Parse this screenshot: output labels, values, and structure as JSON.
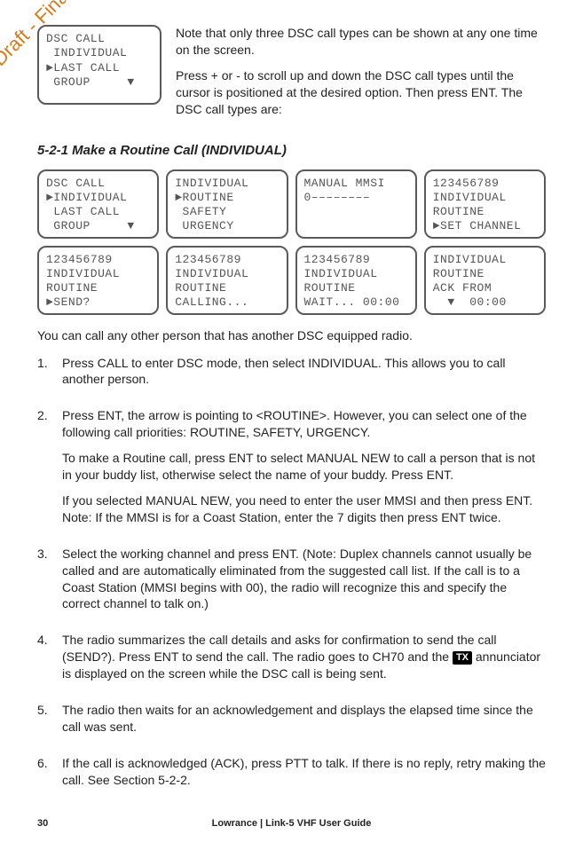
{
  "watermark": "Draft - Final Approval",
  "top_lcd": "DSC CALL\n INDIVIDUAL\n►LAST CALL\n GROUP     ▼",
  "intro1": " Note that only three DSC call types can be shown at any one time on the screen.",
  "intro2": "Press + or - to scroll up and down the DSC call types until the cursor is positioned at the desired option. Then press ENT. The DSC call types are:",
  "section_heading": "5-2-1 Make a Routine Call (INDIVIDUAL)",
  "lcd_grid": [
    "DSC CALL\n►INDIVIDUAL\n LAST CALL\n GROUP     ▼",
    "INDIVIDUAL\n►ROUTINE\n SAFETY\n URGENCY",
    "MANUAL MMSI\n0––––––––",
    "123456789\nINDIVIDUAL\nROUTINE\n►SET CHANNEL",
    "123456789\nINDIVIDUAL\nROUTINE\n►SEND?",
    "123456789\nINDIVIDUAL\nROUTINE\nCALLING...",
    "123456789\nINDIVIDUAL\nROUTINE\nWAIT... 00:00",
    "INDIVIDUAL\nROUTINE\nACK FROM\n  ▼  00:00"
  ],
  "body_intro": "You can call any other person that has another DSC equipped radio.",
  "steps": [
    {
      "num": "1.",
      "paras": [
        "Press CALL to enter DSC mode, then select INDIVIDUAL. This allows you to call another person."
      ]
    },
    {
      "num": "2.",
      "paras": [
        "Press ENT, the arrow is pointing to <ROUTINE>. However, you can select one of the following call priorities: ROUTINE, SAFETY, URGENCY.",
        "To make a Routine call, press ENT to select MANUAL NEW to call a person that is not in your buddy list, otherwise select the name of your buddy. Press ENT.",
        "If you selected MANUAL NEW, you need to enter the user MMSI and then press ENT. Note: If the MMSI is for a Coast Station, enter the 7 digits then press ENT twice."
      ]
    },
    {
      "num": "3.",
      "paras": [
        "Select the working channel and press ENT. (Note: Duplex channels cannot usually be called and are automatically eliminated from the suggested call list. If the call is to a Coast Station (MMSI begins with 00), the radio will recognize this and specify the correct channel to talk on.)"
      ]
    },
    {
      "num": "4.",
      "pre": "The radio summarizes the call details and asks for confirmation to send the call (SEND?). Press ENT to send the call. The radio goes to CH70 and the ",
      "badge": "TX",
      "post": " annunciator is displayed on the screen while the DSC call is being sent."
    },
    {
      "num": "5.",
      "paras": [
        "The radio then waits for an acknowledgement and displays the elapsed time since the call was sent."
      ]
    },
    {
      "num": "6.",
      "paras": [
        "If the call is acknowledged (ACK), press PTT to talk. If there is no reply, retry making the call. See Section 5-2-2."
      ]
    }
  ],
  "footer_page": "30",
  "footer_center": "Lowrance | Link-5 VHF User Guide"
}
